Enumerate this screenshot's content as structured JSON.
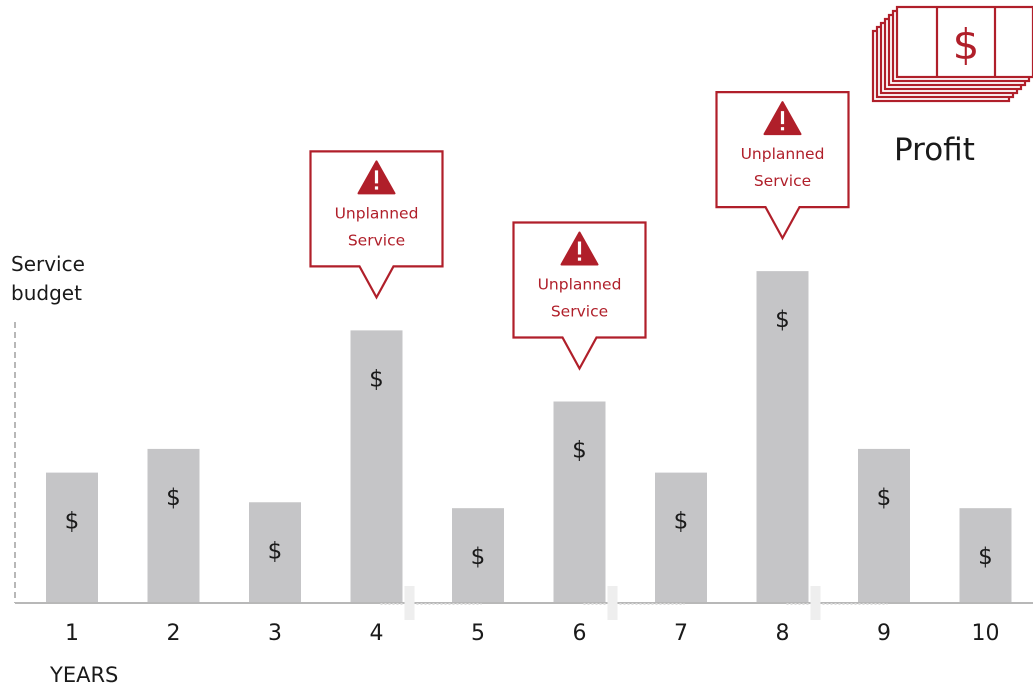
{
  "colors": {
    "bar": "#c5c5c7",
    "accent": "#b01f2a",
    "axis": "#b8b8b8",
    "text": "#1a1a1a"
  },
  "chart_data": {
    "type": "bar",
    "xlabel": "YEARS",
    "ylabel": "Service budget",
    "categories": [
      "1",
      "2",
      "3",
      "4",
      "5",
      "6",
      "7",
      "8",
      "9",
      "10"
    ],
    "values": [
      1.1,
      1.3,
      0.85,
      2.3,
      0.8,
      1.7,
      1.1,
      2.8,
      1.3,
      0.8
    ],
    "bar_label": "$",
    "ylim": [
      0,
      3.4
    ],
    "grid": false,
    "annotations": [
      {
        "category": "4",
        "label_line1": "Unplanned",
        "label_line2": "Service",
        "icon": "warning-icon"
      },
      {
        "category": "6",
        "label_line1": "Unplanned",
        "label_line2": "Service",
        "icon": "warning-icon"
      },
      {
        "category": "8",
        "label_line1": "Unplanned",
        "label_line2": "Service",
        "icon": "warning-icon"
      }
    ]
  },
  "profit": {
    "label": "Profit",
    "icon": "money-stack-icon",
    "symbol": "$"
  }
}
